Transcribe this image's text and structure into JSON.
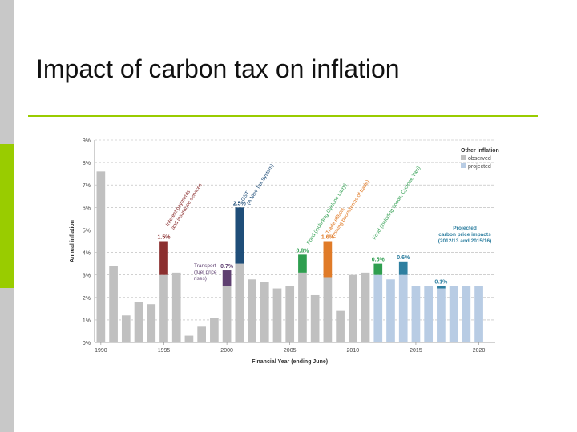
{
  "slide": {
    "title": "Impact of carbon tax on inflation"
  },
  "chart_data": {
    "type": "bar",
    "stacked": true,
    "xlabel": "Financial Year (ending June)",
    "ylabel": "Annual inflation",
    "ylim": [
      0,
      9
    ],
    "yticks": [
      "0%",
      "1%",
      "2%",
      "3%",
      "4%",
      "5%",
      "6%",
      "7%",
      "8%",
      "9%"
    ],
    "xticks": [
      {
        "year": 1990,
        "label": "1990"
      },
      {
        "year": 1995,
        "label": "1995"
      },
      {
        "year": 2000,
        "label": "2000"
      },
      {
        "year": 2005,
        "label": "2005"
      },
      {
        "year": 2010,
        "label": "2010"
      },
      {
        "year": 2015,
        "label": "2015"
      },
      {
        "year": 2020,
        "label": "2020"
      }
    ],
    "grid": "horizontal dashed",
    "years": [
      1990,
      1991,
      1992,
      1993,
      1994,
      1995,
      1996,
      1997,
      1998,
      1999,
      2000,
      2001,
      2002,
      2003,
      2004,
      2005,
      2006,
      2007,
      2008,
      2009,
      2010,
      2011,
      2012,
      2013,
      2014,
      2015,
      2016,
      2017,
      2018,
      2019,
      2020
    ],
    "series": [
      {
        "name": "observed",
        "color": "#c0c0c0",
        "values": [
          7.6,
          3.4,
          1.2,
          1.8,
          1.7,
          3.0,
          3.1,
          0.3,
          0.7,
          1.1,
          2.5,
          3.5,
          2.8,
          2.7,
          2.4,
          2.5,
          3.1,
          2.1,
          2.9,
          1.4,
          3.0,
          3.1,
          null,
          null,
          null,
          null,
          null,
          null,
          null,
          null,
          null
        ]
      },
      {
        "name": "projected",
        "color": "#b8cce4",
        "values": [
          null,
          null,
          null,
          null,
          null,
          null,
          null,
          null,
          null,
          null,
          null,
          null,
          null,
          null,
          null,
          null,
          null,
          null,
          null,
          null,
          null,
          null,
          3.0,
          2.8,
          3.0,
          2.5,
          2.5,
          2.4,
          2.5,
          2.5,
          2.5
        ]
      }
    ],
    "impacts": [
      {
        "year": 1995,
        "value": 1.5,
        "label": "1.5%",
        "color": "#8b2f2f"
      },
      {
        "year": 2000,
        "value": 0.7,
        "label": "0.7%",
        "color": "#5e3f70"
      },
      {
        "year": 2001,
        "value": 2.5,
        "label": "2.5%",
        "color": "#1f4e79"
      },
      {
        "year": 2006,
        "value": 0.8,
        "label": "0.8%",
        "color": "#2e9e4f"
      },
      {
        "year": 2008,
        "value": 1.6,
        "label": "1.6%",
        "color": "#e07b28"
      },
      {
        "year": 2012,
        "value": 0.5,
        "label": "0.5%",
        "color": "#2e9e4f"
      },
      {
        "year": 2014,
        "value": 0.6,
        "label": "0.6%",
        "color": "#2e7fa0"
      },
      {
        "year": 2017,
        "value": 0.1,
        "label": "0.1%",
        "color": "#2e7fa0"
      }
    ],
    "legend": {
      "title": "Other inflation",
      "items": [
        {
          "label": "observed",
          "color": "#c0c0c0"
        },
        {
          "label": "projected",
          "color": "#b8cce4"
        }
      ],
      "placement": "top-right"
    },
    "annotations": [
      {
        "id": "interest",
        "lines": [
          "Interest payments",
          "and insurance services"
        ],
        "color": "#8b2f2f"
      },
      {
        "id": "gst",
        "lines": [
          "GST",
          "(A New Tax System)"
        ],
        "color": "#1f4e79"
      },
      {
        "id": "transport",
        "lines": [
          "Transport",
          "(fuel price",
          "rises)"
        ],
        "color": "#5e3f70"
      },
      {
        "id": "food-yasi-larry",
        "lines": [
          "Food (including Cyclone Larry)"
        ],
        "color": "#2e9e4f"
      },
      {
        "id": "trade",
        "lines": [
          "Trade effects",
          "(mining boom/terms of trade)"
        ],
        "color": "#e07b28"
      },
      {
        "id": "food-floods",
        "lines": [
          "Food (including floods, Cyclone Yasi)"
        ],
        "color": "#2e9e4f"
      },
      {
        "id": "carbon",
        "lines": [
          "Projected",
          "carbon price impacts",
          "(2012/13 and 2015/16)"
        ],
        "color": "#2e7fa0"
      }
    ]
  }
}
